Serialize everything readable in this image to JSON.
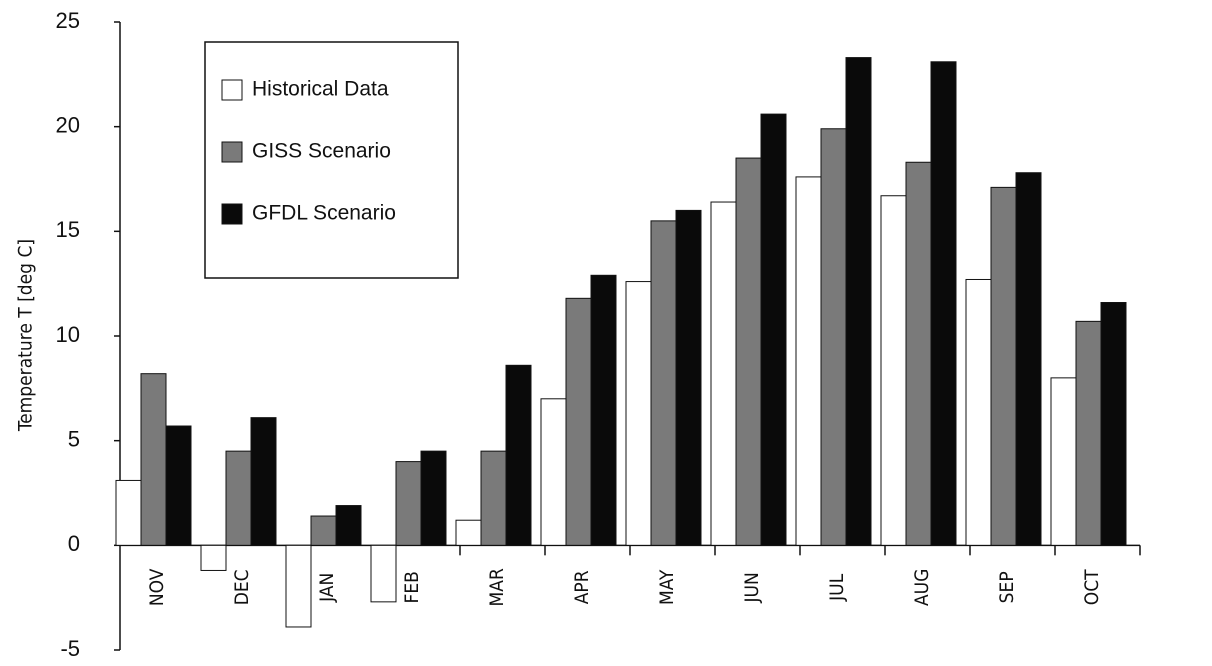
{
  "chart_data": {
    "type": "bar",
    "y_label": "Temperature  T  [deg C]",
    "categories": [
      "NOV",
      "DEC",
      "JAN",
      "FEB",
      "MAR",
      "APR",
      "MAY",
      "JUN",
      "JUL",
      "AUG",
      "SEP",
      "OCT"
    ],
    "series": [
      {
        "name": "Historical Data",
        "color": "#ffffff",
        "values": [
          3.1,
          -1.2,
          -3.9,
          -2.7,
          1.2,
          7.0,
          12.6,
          16.4,
          17.6,
          16.7,
          12.7,
          8.0
        ]
      },
      {
        "name": "GISS Scenario",
        "color": "#7a7a7a",
        "values": [
          8.2,
          4.5,
          1.4,
          4.0,
          4.5,
          11.8,
          15.5,
          18.5,
          19.9,
          18.3,
          17.1,
          10.7
        ]
      },
      {
        "name": "GFDL Scenario",
        "color": "#0a0a0a",
        "values": [
          5.7,
          6.1,
          1.9,
          4.5,
          8.6,
          12.9,
          16.0,
          20.6,
          23.3,
          23.1,
          17.8,
          11.6
        ]
      }
    ],
    "ylim": [
      -5,
      25
    ],
    "yticks": [
      -5,
      0,
      5,
      10,
      15,
      20,
      25
    ],
    "grid": false
  }
}
